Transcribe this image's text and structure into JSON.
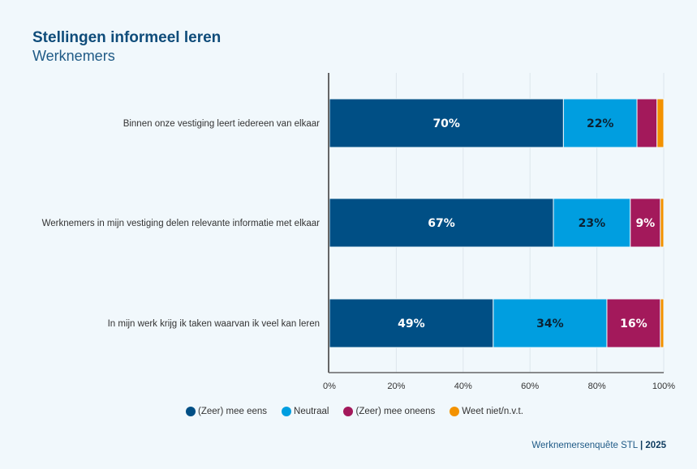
{
  "header": {
    "title": "Stellingen informeel leren",
    "subtitle": "Werknemers"
  },
  "footer": {
    "source": "Werknemersenquête STL",
    "separator": "|",
    "year": "2025"
  },
  "chart_data": {
    "type": "bar",
    "orientation": "horizontal",
    "stacked": true,
    "title": "Stellingen informeel leren",
    "subtitle": "Werknemers",
    "categories": [
      "Binnen onze vestiging leert iedereen van elkaar",
      "Werknemers in mijn vestiging delen relevante informatie met elkaar",
      "In mijn werk krijg ik taken waarvan ik veel kan leren"
    ],
    "series": [
      {
        "name": "(Zeer) mee eens",
        "color": "#004f85",
        "values": [
          70,
          67,
          49
        ],
        "labels": [
          "70%",
          "67%",
          "49%"
        ],
        "label_color": "#ffffff"
      },
      {
        "name": "Neutraal",
        "color": "#009ee0",
        "values": [
          22,
          23,
          34
        ],
        "labels": [
          "22%",
          "23%",
          "34%"
        ],
        "label_color": "#0b2233"
      },
      {
        "name": "(Zeer) mee oneens",
        "color": "#a3195b",
        "values": [
          6,
          9,
          16
        ],
        "labels": [
          "",
          "9%",
          "16%"
        ],
        "label_color": "#ffffff"
      },
      {
        "name": "Weet niet/n.v.t.",
        "color": "#f39200",
        "values": [
          2,
          1,
          1
        ],
        "labels": [
          "",
          "",
          ""
        ],
        "label_color": "#ffffff"
      }
    ],
    "xaxis": {
      "ticks": [
        0,
        20,
        40,
        60,
        80,
        100
      ],
      "tick_labels": [
        "0%",
        "20%",
        "40%",
        "60%",
        "80%",
        "100%"
      ],
      "range": [
        0,
        100
      ]
    },
    "xlabel": "",
    "ylabel": "",
    "grid": true,
    "legend_position": "bottom-center"
  }
}
